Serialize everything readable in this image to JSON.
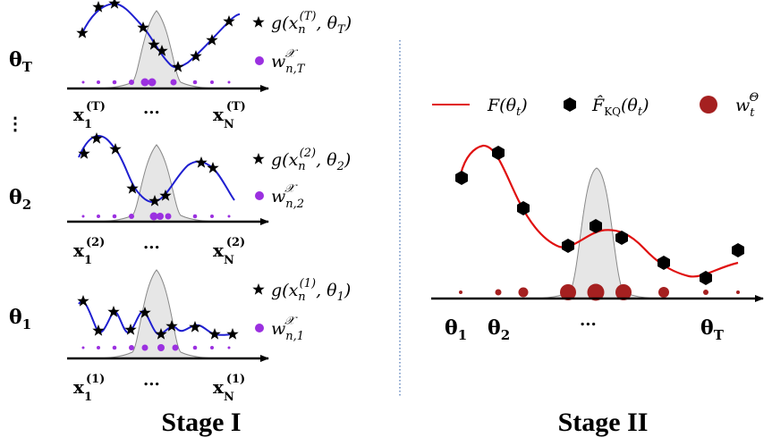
{
  "stage1": {
    "label": "Stage I",
    "rows": [
      {
        "theta_label": "θ_T",
        "x_first": "x_1^(T)",
        "x_last": "x_N^(T)",
        "dots": "...",
        "legend_g": "g(x_n^(T), θ_T)",
        "legend_w": "w_{n,T}^X"
      },
      {
        "theta_label": "θ_2",
        "x_first": "x_1^(2)",
        "x_last": "x_N^(2)",
        "dots": "...",
        "legend_g": "g(x_n^(2), θ_2)",
        "legend_w": "w_{n,2}^X"
      },
      {
        "theta_label": "θ_1",
        "x_first": "x_1^(1)",
        "x_last": "x_N^(1)",
        "dots": "...",
        "legend_g": "g(x_n^(1), θ_1)",
        "legend_w": "w_{n,1}^X"
      }
    ],
    "vertical_ellipsis": "⋮"
  },
  "stage2": {
    "label": "Stage II",
    "legend_F": "F(θ_t)",
    "legend_FKQ": "F̂_KQ(θ_t)",
    "legend_w": "w_t^Θ",
    "x_first": "θ_1",
    "x_second": "θ_2",
    "x_last": "θ_T",
    "dots": "..."
  },
  "colors": {
    "blue_curve": "#1f1fd0",
    "red_curve": "#e01010",
    "purple_dots": "#9b30e0",
    "dark_red_dots": "#a52020",
    "gaussian_fill": "#e6e6e6",
    "separator": "#1a4fa0"
  }
}
